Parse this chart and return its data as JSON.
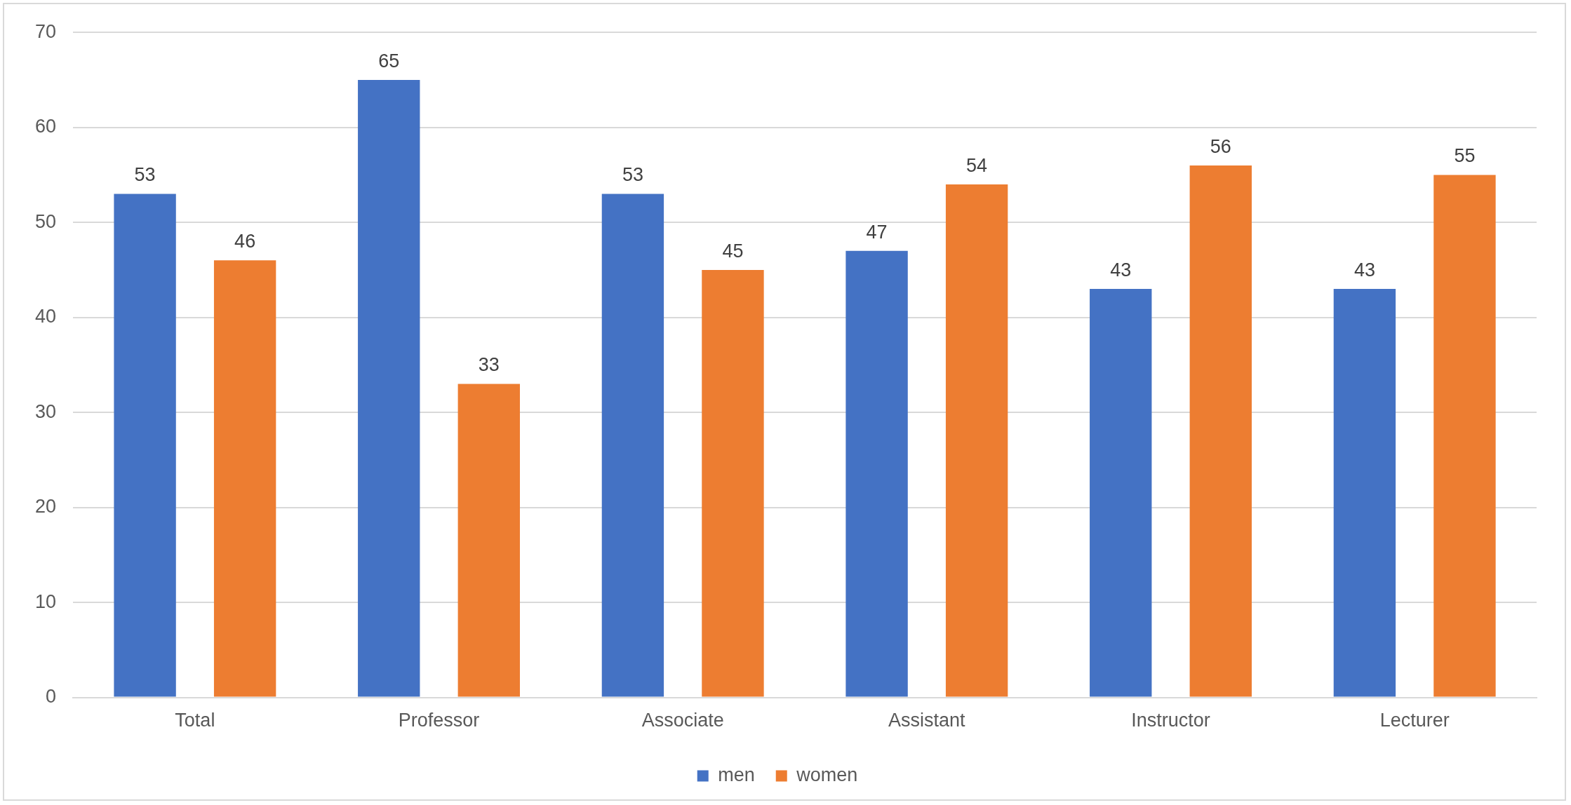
{
  "chart_data": {
    "type": "bar",
    "categories": [
      "Total",
      "Professor",
      "Associate",
      "Assistant",
      "Instructor",
      "Lecturer"
    ],
    "series": [
      {
        "name": "men",
        "color": "#4472c4",
        "values": [
          53,
          65,
          53,
          47,
          43,
          43
        ]
      },
      {
        "name": "women",
        "color": "#ed7d31",
        "values": [
          46,
          33,
          45,
          54,
          56,
          55
        ]
      }
    ],
    "ylim": [
      0,
      70
    ],
    "yticks": [
      0,
      10,
      20,
      30,
      40,
      50,
      60,
      70
    ],
    "grid": "y",
    "legend": "bottom",
    "data_labels": true
  }
}
